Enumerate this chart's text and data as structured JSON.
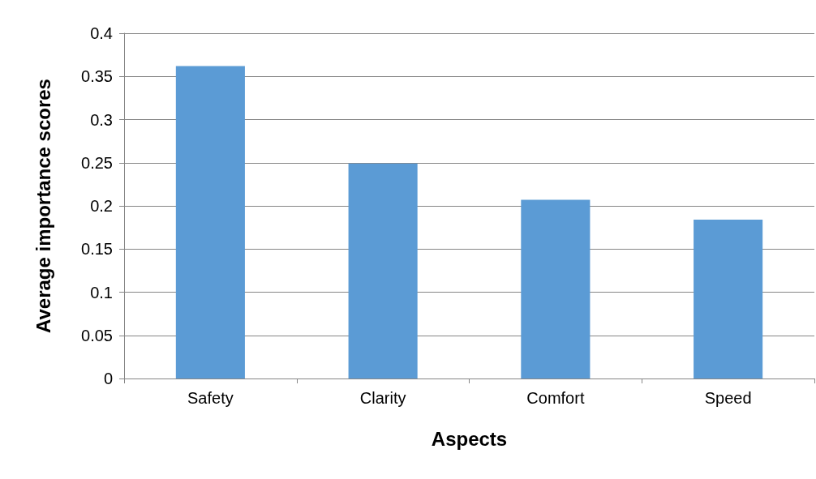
{
  "chart_data": {
    "type": "bar",
    "xlabel": "Aspects",
    "ylabel": "Average importance scores",
    "categories": [
      "Safety",
      "Clarity",
      "Comfort",
      "Speed"
    ],
    "values": [
      0.362,
      0.249,
      0.207,
      0.184
    ],
    "color": "#5b9bd5",
    "ylim": [
      0,
      0.4
    ],
    "yticks": [
      0,
      0.05,
      0.1,
      0.15,
      0.2,
      0.25,
      0.3,
      0.35,
      0.4
    ],
    "grid": "y"
  }
}
